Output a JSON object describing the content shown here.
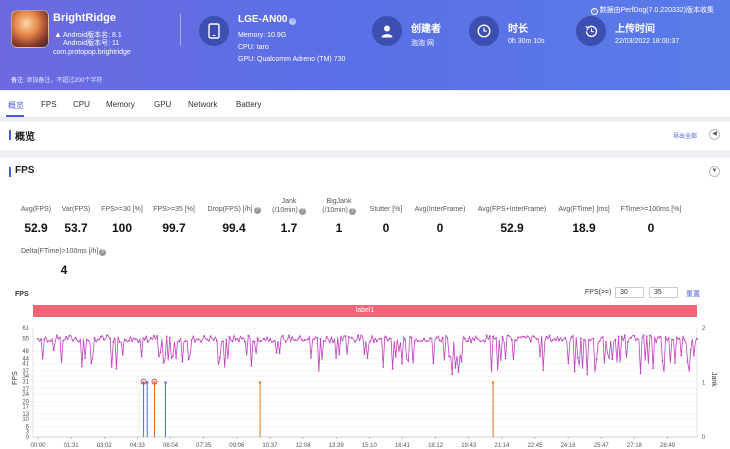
{
  "header": {
    "app_name": "BrightRidge",
    "android_version": "Android版本名: 8.1",
    "android_code": "Android版本号: 11",
    "package": "com.protopop.brightridge",
    "device": {
      "name": "LGE-AN00",
      "memory": "Memory: 10.9G",
      "cpu": "CPU: taro",
      "gpu": "GPU: Qualcomm Adreno (TM) 730"
    },
    "creator": {
      "label": "创建者",
      "value": "泡泡 网"
    },
    "duration": {
      "label": "时长",
      "value": "0h 30m 10s"
    },
    "upload": {
      "label": "上传时间",
      "value": "22/03/2022 18:00:37"
    },
    "notice": "数据由PerfDog(7.0.220332)版本收集",
    "remark_label": "备注:",
    "remark_placeholder": "添加备注，不超过200个字符"
  },
  "tabs": [
    "概览",
    "FPS",
    "CPU",
    "Memory",
    "GPU",
    "Network",
    "Battery"
  ],
  "overview": {
    "title": "概览",
    "export": "导出全部"
  },
  "fps_section": {
    "title": "FPS",
    "metrics": [
      {
        "label": "Avg(FPS)",
        "value": "52.9"
      },
      {
        "label": "Var(FPS)",
        "value": "53.7"
      },
      {
        "label": "FPS>=30 [%]",
        "value": "100"
      },
      {
        "label": "FPS>=35 [%]",
        "value": "99.7"
      },
      {
        "label": "Drop(FPS) [/h]",
        "value": "99.4"
      },
      {
        "label": "Jank",
        "label2": "(/10min)",
        "value": "1.7"
      },
      {
        "label": "BigJank",
        "label2": "(/10min)",
        "value": "1"
      },
      {
        "label": "Stutter [%]",
        "value": "0"
      },
      {
        "label": "Avg(InterFrame)",
        "value": "0"
      },
      {
        "label": "Avg(FPS+InterFrame)",
        "value": "52.9"
      },
      {
        "label": "Avg(FTime) [ms]",
        "value": "18.9"
      },
      {
        "label": "FTime>=100ms [%]",
        "value": "0"
      }
    ],
    "delta_label": "Delta(FTime)>100ms [/h]",
    "delta_value": "4"
  },
  "chart_controls": {
    "title": "FPS",
    "fps_ge_label": "FPS(>=)",
    "threshold1": "30",
    "threshold2": "35",
    "reset": "重置",
    "label_bar": "label1"
  },
  "chart_data": {
    "type": "line",
    "ylabel": "FPS",
    "ylabel_right": "Jank",
    "y_ticks": [
      0,
      3,
      6,
      10,
      13,
      17,
      20,
      24,
      27,
      31,
      34,
      37,
      41,
      44,
      48,
      55,
      61
    ],
    "y2_ticks": [
      0,
      1,
      2
    ],
    "x_ticks": [
      "00:00",
      "01:31",
      "03:02",
      "04:33",
      "06:04",
      "07:35",
      "09:06",
      "10:37",
      "12:08",
      "13:39",
      "15:10",
      "16:41",
      "18:12",
      "19:43",
      "21:14",
      "22:45",
      "24:16",
      "25:47",
      "27:18",
      "28:49"
    ],
    "ylim": [
      0,
      61
    ],
    "y2lim": [
      0,
      2
    ],
    "series": [
      {
        "color": "#c040c0",
        "typical_value": 55,
        "dips_to": 35
      },
      {
        "color": "#e07020",
        "marks_at": [
          "05:20",
          "10:10",
          "20:50"
        ],
        "values": [
          1,
          1,
          1
        ]
      },
      {
        "color": "#3a6ff0",
        "marks_at": [
          "04:50",
          "05:00",
          "05:50"
        ],
        "values": [
          1,
          1,
          1
        ]
      }
    ]
  },
  "colors": {
    "accent": "#4a5cd8",
    "header": "#5a6fe6",
    "label_bar": "#ee6677",
    "fps_line": "#c040c0"
  }
}
